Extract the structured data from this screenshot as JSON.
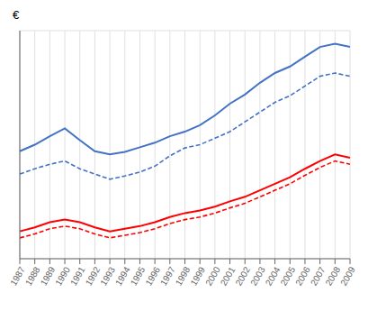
{
  "chart_data": {
    "type": "line",
    "ylabel": "€",
    "categories": [
      "1987",
      "1988",
      "1989",
      "1990",
      "1991",
      "1992",
      "1993",
      "1994",
      "1995",
      "1996",
      "1997",
      "1998",
      "1999",
      "2000",
      "2001",
      "2002",
      "2003",
      "2004",
      "2005",
      "2006",
      "2007",
      "2008",
      "2009"
    ],
    "series": [
      {
        "color": "#4472C4",
        "line_style": "solid",
        "values": [
          26500,
          27500,
          28800,
          30000,
          28200,
          26500,
          26000,
          26400,
          27100,
          27800,
          28800,
          29500,
          30500,
          32000,
          33800,
          35200,
          37000,
          38500,
          39500,
          41000,
          42500,
          43000,
          42500
        ]
      },
      {
        "color": "#4472C4",
        "line_style": "dashed",
        "values": [
          23000,
          23800,
          24500,
          25000,
          23800,
          23000,
          22200,
          22700,
          23300,
          24200,
          25800,
          27000,
          27500,
          28500,
          29500,
          31000,
          32500,
          34000,
          35000,
          36500,
          38000,
          38500,
          38000
        ]
      },
      {
        "color": "#FF0000",
        "line_style": "solid",
        "values": [
          14200,
          14800,
          15600,
          16000,
          15600,
          14800,
          14200,
          14600,
          15000,
          15600,
          16400,
          17000,
          17400,
          18000,
          18800,
          19500,
          20500,
          21500,
          22500,
          23800,
          25000,
          26000,
          25500
        ]
      },
      {
        "color": "#FF0000",
        "line_style": "dashed",
        "values": [
          13200,
          13800,
          14600,
          15000,
          14600,
          13800,
          13200,
          13600,
          14000,
          14600,
          15400,
          16000,
          16400,
          17000,
          17800,
          18500,
          19500,
          20500,
          21500,
          22800,
          24000,
          25000,
          24500
        ]
      }
    ],
    "ylim": [
      10000,
      45000
    ],
    "yticks": [
      10000,
      15000,
      20000,
      25000,
      30000,
      35000,
      40000,
      45000
    ],
    "grid": true,
    "tick_labels": "x"
  }
}
